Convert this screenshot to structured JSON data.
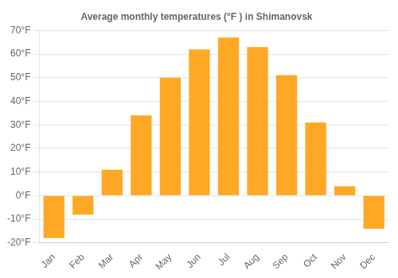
{
  "chart_data": {
    "type": "bar",
    "title": "Average monthly temperatures (°F ) in Shimanovsk",
    "categories": [
      "Jan",
      "Feb",
      "Mar",
      "Apr",
      "May",
      "Jun",
      "Jul",
      "Aug",
      "Sep",
      "Oct",
      "Nov",
      "Dec"
    ],
    "values": [
      -18,
      -8,
      11,
      34,
      50,
      62,
      67,
      63,
      51,
      31,
      4,
      -14
    ],
    "color": "#FFA825",
    "ylim": [
      -20,
      70
    ],
    "yticks": [
      {
        "value": -20,
        "label": "-20°F"
      },
      {
        "value": -10,
        "label": "-10°F"
      },
      {
        "value": 0,
        "label": "0°F"
      },
      {
        "value": 10,
        "label": "10°F"
      },
      {
        "value": 20,
        "label": "20°F"
      },
      {
        "value": 30,
        "label": "30°F"
      },
      {
        "value": 40,
        "label": "40°F"
      },
      {
        "value": 50,
        "label": "50°F"
      },
      {
        "value": 60,
        "label": "60°F"
      },
      {
        "value": 70,
        "label": "70°F"
      }
    ],
    "grid": true
  }
}
